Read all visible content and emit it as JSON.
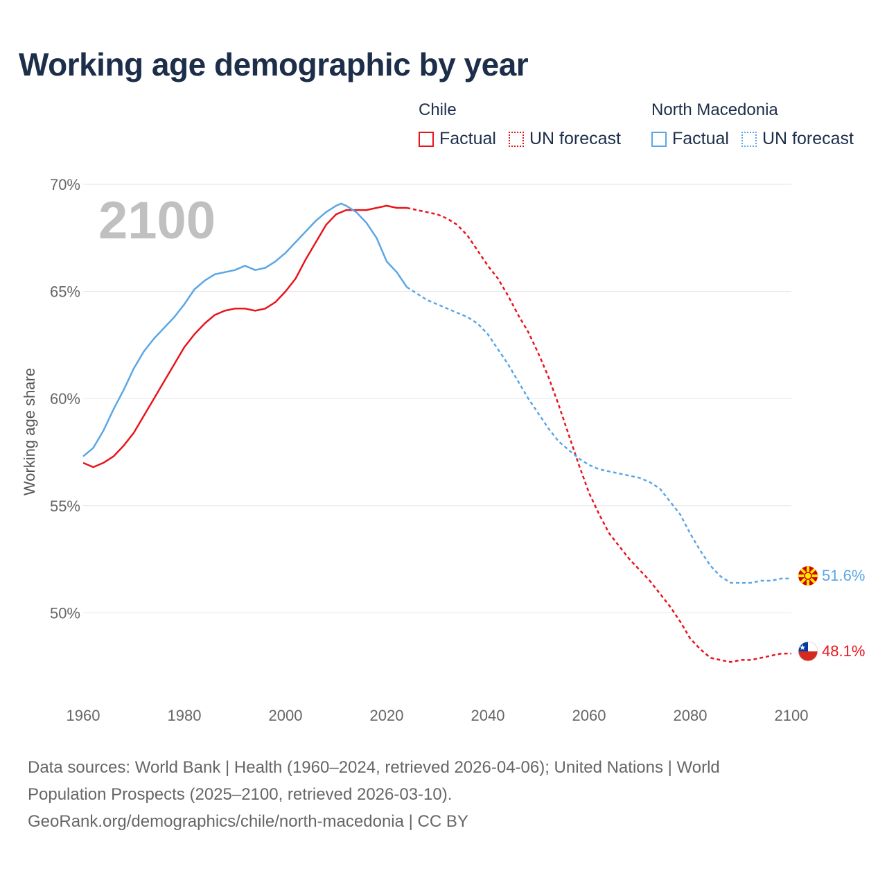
{
  "title": "Working age demographic by year",
  "legend": [
    {
      "group": "Chile",
      "factual_label": "Factual",
      "forecast_label": "UN forecast",
      "color": "#e8141c"
    },
    {
      "group": "North Macedonia",
      "factual_label": "Factual",
      "forecast_label": "UN forecast",
      "color": "#5aa6e6"
    }
  ],
  "watermark_year": "2100",
  "sources": {
    "line1": "Data sources: World Bank | Health (1960–2024, retrieved 2026-04-06); United Nations | World",
    "line2": "Population Prospects (2025–2100, retrieved 2026-03-10).",
    "line3": "GeoRank.org/demographics/chile/north-macedonia | CC BY"
  },
  "chart_data": {
    "type": "line",
    "title": "Working age demographic by year",
    "xlabel": "",
    "ylabel": "Working age share",
    "xlim": [
      1960,
      2100
    ],
    "ylim": [
      46,
      70
    ],
    "x_ticks": [
      1960,
      1980,
      2000,
      2020,
      2040,
      2060,
      2080,
      2100
    ],
    "y_ticks": [
      {
        "value": 50,
        "label": "50%"
      },
      {
        "value": 55,
        "label": "55%"
      },
      {
        "value": 60,
        "label": "60%"
      },
      {
        "value": 65,
        "label": "65%"
      },
      {
        "value": 70,
        "label": "70%"
      }
    ],
    "grid": true,
    "factual_end_year": 2024,
    "series": [
      {
        "name": "Chile",
        "color": "#e8141c",
        "end_label": "48.1%",
        "flag": "chile",
        "points": [
          [
            1960,
            57.0
          ],
          [
            1962,
            56.8
          ],
          [
            1964,
            57.0
          ],
          [
            1966,
            57.3
          ],
          [
            1968,
            57.8
          ],
          [
            1970,
            58.4
          ],
          [
            1972,
            59.2
          ],
          [
            1974,
            60.0
          ],
          [
            1976,
            60.8
          ],
          [
            1978,
            61.6
          ],
          [
            1980,
            62.4
          ],
          [
            1982,
            63.0
          ],
          [
            1984,
            63.5
          ],
          [
            1986,
            63.9
          ],
          [
            1988,
            64.1
          ],
          [
            1990,
            64.2
          ],
          [
            1992,
            64.2
          ],
          [
            1994,
            64.1
          ],
          [
            1996,
            64.2
          ],
          [
            1998,
            64.5
          ],
          [
            2000,
            65.0
          ],
          [
            2002,
            65.6
          ],
          [
            2004,
            66.5
          ],
          [
            2006,
            67.3
          ],
          [
            2008,
            68.1
          ],
          [
            2010,
            68.6
          ],
          [
            2012,
            68.8
          ],
          [
            2014,
            68.8
          ],
          [
            2016,
            68.8
          ],
          [
            2018,
            68.9
          ],
          [
            2020,
            69.0
          ],
          [
            2022,
            68.9
          ],
          [
            2024,
            68.9
          ],
          [
            2026,
            68.8
          ],
          [
            2028,
            68.7
          ],
          [
            2030,
            68.6
          ],
          [
            2032,
            68.4
          ],
          [
            2034,
            68.1
          ],
          [
            2036,
            67.6
          ],
          [
            2038,
            66.9
          ],
          [
            2040,
            66.2
          ],
          [
            2042,
            65.6
          ],
          [
            2044,
            64.8
          ],
          [
            2046,
            63.9
          ],
          [
            2048,
            63.1
          ],
          [
            2050,
            62.1
          ],
          [
            2052,
            61.0
          ],
          [
            2054,
            59.7
          ],
          [
            2056,
            58.3
          ],
          [
            2058,
            56.9
          ],
          [
            2060,
            55.6
          ],
          [
            2062,
            54.6
          ],
          [
            2064,
            53.7
          ],
          [
            2066,
            53.1
          ],
          [
            2068,
            52.5
          ],
          [
            2070,
            52.0
          ],
          [
            2072,
            51.5
          ],
          [
            2074,
            50.9
          ],
          [
            2076,
            50.3
          ],
          [
            2078,
            49.6
          ],
          [
            2080,
            48.8
          ],
          [
            2082,
            48.3
          ],
          [
            2084,
            47.9
          ],
          [
            2086,
            47.8
          ],
          [
            2088,
            47.7
          ],
          [
            2090,
            47.8
          ],
          [
            2092,
            47.8
          ],
          [
            2094,
            47.9
          ],
          [
            2096,
            48.0
          ],
          [
            2098,
            48.1
          ],
          [
            2100,
            48.1
          ]
        ]
      },
      {
        "name": "North Macedonia",
        "color": "#5aa6e6",
        "end_label": "51.6%",
        "flag": "north-macedonia",
        "points": [
          [
            1960,
            57.3
          ],
          [
            1962,
            57.7
          ],
          [
            1964,
            58.5
          ],
          [
            1966,
            59.5
          ],
          [
            1968,
            60.4
          ],
          [
            1970,
            61.4
          ],
          [
            1972,
            62.2
          ],
          [
            1974,
            62.8
          ],
          [
            1976,
            63.3
          ],
          [
            1978,
            63.8
          ],
          [
            1980,
            64.4
          ],
          [
            1982,
            65.1
          ],
          [
            1984,
            65.5
          ],
          [
            1986,
            65.8
          ],
          [
            1988,
            65.9
          ],
          [
            1990,
            66.0
          ],
          [
            1992,
            66.2
          ],
          [
            1994,
            66.0
          ],
          [
            1996,
            66.1
          ],
          [
            1998,
            66.4
          ],
          [
            2000,
            66.8
          ],
          [
            2002,
            67.3
          ],
          [
            2004,
            67.8
          ],
          [
            2006,
            68.3
          ],
          [
            2008,
            68.7
          ],
          [
            2010,
            69.0
          ],
          [
            2011,
            69.1
          ],
          [
            2012,
            69.0
          ],
          [
            2014,
            68.7
          ],
          [
            2016,
            68.2
          ],
          [
            2018,
            67.5
          ],
          [
            2020,
            66.4
          ],
          [
            2022,
            65.9
          ],
          [
            2024,
            65.2
          ],
          [
            2026,
            64.9
          ],
          [
            2028,
            64.6
          ],
          [
            2030,
            64.4
          ],
          [
            2032,
            64.2
          ],
          [
            2034,
            64.0
          ],
          [
            2036,
            63.8
          ],
          [
            2038,
            63.5
          ],
          [
            2040,
            63.0
          ],
          [
            2042,
            62.3
          ],
          [
            2044,
            61.6
          ],
          [
            2046,
            60.8
          ],
          [
            2048,
            60.0
          ],
          [
            2050,
            59.3
          ],
          [
            2052,
            58.6
          ],
          [
            2054,
            58.0
          ],
          [
            2056,
            57.6
          ],
          [
            2058,
            57.2
          ],
          [
            2060,
            56.9
          ],
          [
            2062,
            56.7
          ],
          [
            2064,
            56.6
          ],
          [
            2066,
            56.5
          ],
          [
            2068,
            56.4
          ],
          [
            2070,
            56.3
          ],
          [
            2072,
            56.1
          ],
          [
            2074,
            55.8
          ],
          [
            2076,
            55.2
          ],
          [
            2078,
            54.6
          ],
          [
            2080,
            53.7
          ],
          [
            2082,
            52.9
          ],
          [
            2084,
            52.2
          ],
          [
            2086,
            51.7
          ],
          [
            2088,
            51.4
          ],
          [
            2090,
            51.4
          ],
          [
            2092,
            51.4
          ],
          [
            2094,
            51.5
          ],
          [
            2096,
            51.5
          ],
          [
            2098,
            51.6
          ],
          [
            2100,
            51.6
          ]
        ]
      }
    ]
  }
}
